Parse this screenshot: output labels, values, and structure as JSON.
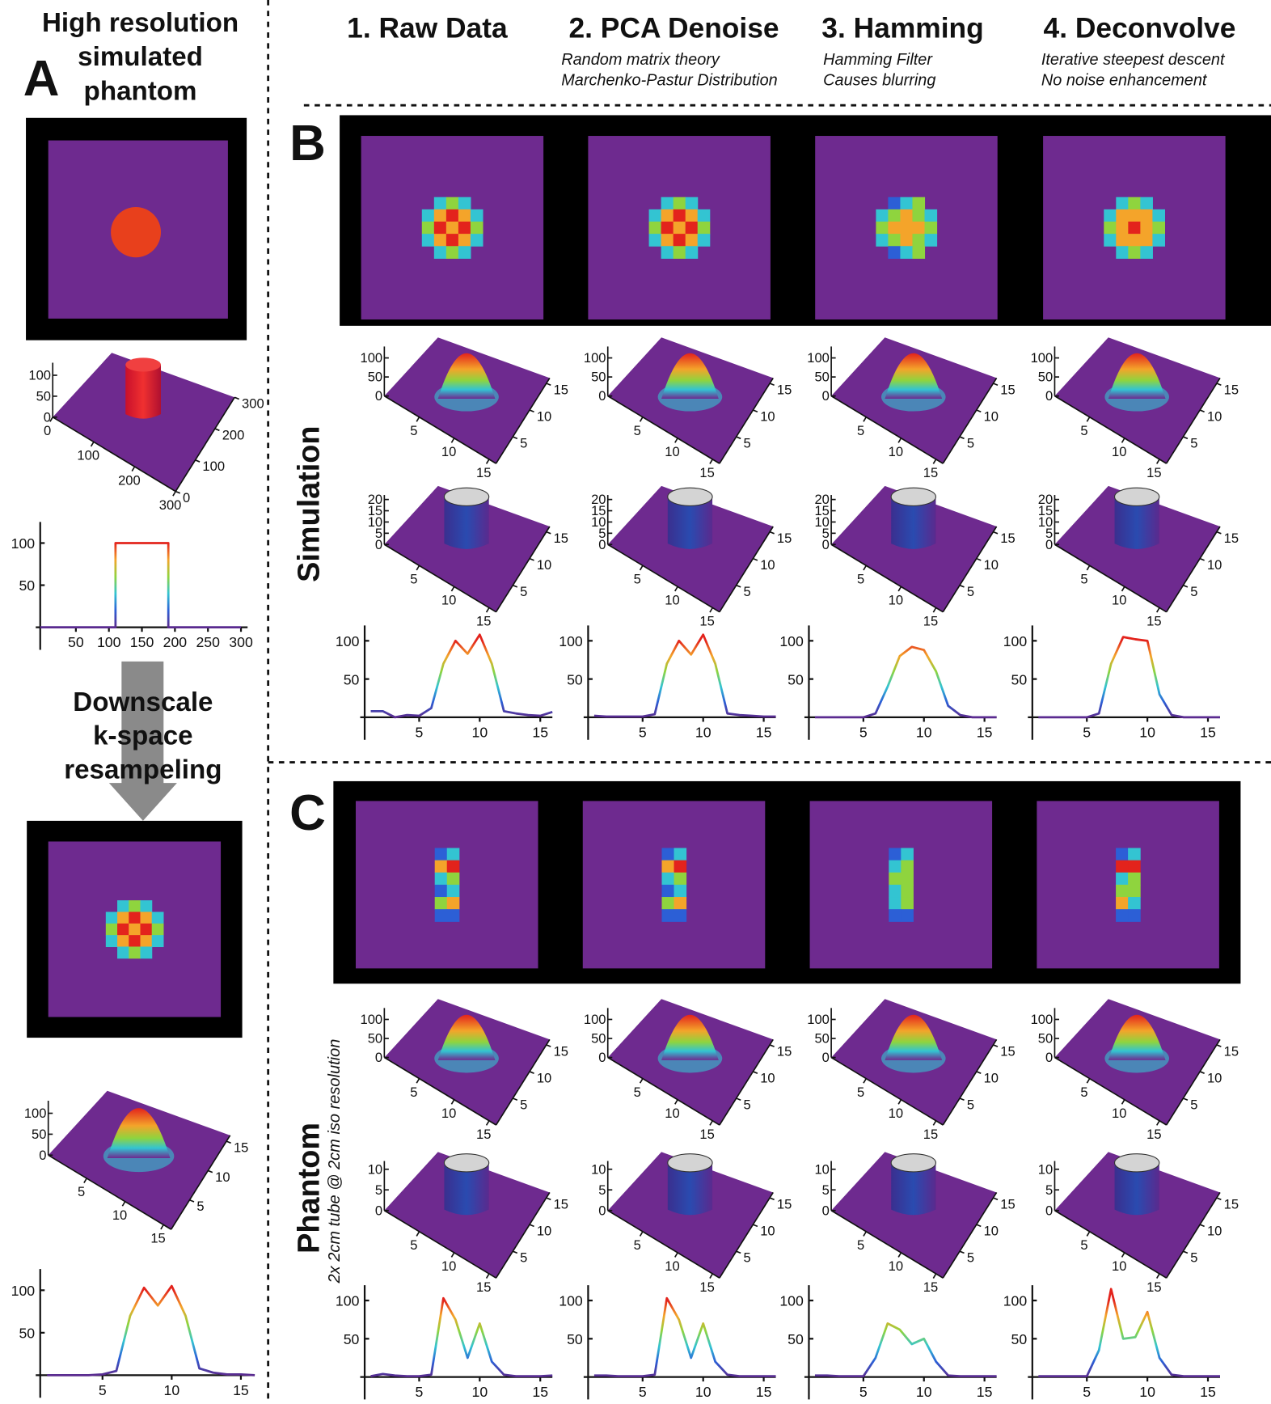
{
  "panel_a": {
    "label": "A",
    "title": [
      "High resolution",
      "simulated",
      "phantom"
    ],
    "downscale": [
      "Downscale",
      "k-space",
      "resampeling"
    ]
  },
  "columns": [
    {
      "title": "1. Raw Data",
      "notes": []
    },
    {
      "title": "2. PCA Denoise",
      "notes": [
        "Random matrix theory",
        "Marchenko-Pastur Distribution"
      ]
    },
    {
      "title": "3. Hamming",
      "notes": [
        "Hamming Filter",
        "Causes blurring"
      ]
    },
    {
      "title": "4. Deconvolve",
      "notes": [
        "Iterative steepest descent",
        "No noise enhancement"
      ]
    }
  ],
  "panel_b": {
    "label": "B",
    "row_label": "Simulation"
  },
  "panel_c": {
    "label": "C",
    "row_label": "Phantom",
    "note": "2x 2cm tube @ 2cm iso resolution"
  },
  "colormap": [
    "#5b2a8e",
    "#2c5fd6",
    "#33c4d2",
    "#8fd43e",
    "#f4a42a",
    "#e3231c"
  ],
  "surfaces": [
    {
      "zlim": [
        0,
        130
      ],
      "zticks": [
        0,
        50,
        100
      ],
      "xlim": [
        0,
        300
      ],
      "xticks": [
        0,
        100,
        200,
        300
      ],
      "ylim": [
        0,
        300
      ],
      "yticks": [
        0,
        100,
        200,
        300
      ]
    },
    {
      "zlim": [
        0,
        130
      ],
      "zticks": [
        0,
        50,
        100
      ],
      "xlim": [
        0,
        16
      ],
      "xticks": [
        5,
        10,
        15
      ],
      "ylim": [
        0,
        16
      ],
      "yticks": [
        5,
        10,
        15
      ]
    },
    {
      "zlim": [
        0,
        130
      ],
      "zticks": [
        0,
        50,
        100
      ],
      "xlim": [
        0,
        16
      ],
      "xticks": [
        5,
        10,
        15
      ],
      "ylim": [
        0,
        16
      ],
      "yticks": [
        5,
        10,
        15
      ]
    },
    {
      "zlim": [
        0,
        130
      ],
      "zticks": [
        0,
        50,
        100
      ],
      "xlim": [
        0,
        16
      ],
      "xticks": [
        5,
        10,
        15
      ],
      "ylim": [
        0,
        16
      ],
      "yticks": [
        5,
        10,
        15
      ]
    },
    {
      "zlim": [
        0,
        130
      ],
      "zticks": [
        0,
        50,
        100
      ],
      "xlim": [
        0,
        16
      ],
      "xticks": [
        5,
        10,
        15
      ],
      "ylim": [
        0,
        16
      ],
      "yticks": [
        5,
        10,
        15
      ]
    },
    {
      "zlim": [
        0,
        130
      ],
      "zticks": [
        0,
        50,
        100
      ],
      "xlim": [
        0,
        16
      ],
      "xticks": [
        5,
        10,
        15
      ],
      "ylim": [
        0,
        16
      ],
      "yticks": [
        5,
        10,
        15
      ]
    },
    {
      "zlim": [
        0,
        22
      ],
      "zticks": [
        0,
        5,
        10,
        15,
        20
      ],
      "xlim": [
        0,
        16
      ],
      "xticks": [
        5,
        10,
        15
      ],
      "ylim": [
        0,
        16
      ],
      "yticks": [
        5,
        10,
        15
      ]
    },
    {
      "zlim": [
        0,
        22
      ],
      "zticks": [
        0,
        5,
        10,
        15,
        20
      ],
      "xlim": [
        0,
        16
      ],
      "xticks": [
        5,
        10,
        15
      ],
      "ylim": [
        0,
        16
      ],
      "yticks": [
        5,
        10,
        15
      ]
    },
    {
      "zlim": [
        0,
        22
      ],
      "zticks": [
        0,
        5,
        10,
        15,
        20
      ],
      "xlim": [
        0,
        16
      ],
      "xticks": [
        5,
        10,
        15
      ],
      "ylim": [
        0,
        16
      ],
      "yticks": [
        5,
        10,
        15
      ]
    },
    {
      "zlim": [
        0,
        22
      ],
      "zticks": [
        0,
        5,
        10,
        15,
        20
      ],
      "xlim": [
        0,
        16
      ],
      "xticks": [
        5,
        10,
        15
      ],
      "ylim": [
        0,
        16
      ],
      "yticks": [
        5,
        10,
        15
      ]
    },
    {
      "zlim": [
        0,
        130
      ],
      "zticks": [
        0,
        50,
        100
      ],
      "xlim": [
        0,
        16
      ],
      "xticks": [
        5,
        10,
        15
      ],
      "ylim": [
        0,
        16
      ],
      "yticks": [
        5,
        10,
        15
      ]
    },
    {
      "zlim": [
        0,
        130
      ],
      "zticks": [
        0,
        50,
        100
      ],
      "xlim": [
        0,
        16
      ],
      "xticks": [
        5,
        10,
        15
      ],
      "ylim": [
        0,
        16
      ],
      "yticks": [
        5,
        10,
        15
      ]
    },
    {
      "zlim": [
        0,
        130
      ],
      "zticks": [
        0,
        50,
        100
      ],
      "xlim": [
        0,
        16
      ],
      "xticks": [
        5,
        10,
        15
      ],
      "ylim": [
        0,
        16
      ],
      "yticks": [
        5,
        10,
        15
      ]
    },
    {
      "zlim": [
        0,
        130
      ],
      "zticks": [
        0,
        50,
        100
      ],
      "xlim": [
        0,
        16
      ],
      "xticks": [
        5,
        10,
        15
      ],
      "ylim": [
        0,
        16
      ],
      "yticks": [
        5,
        10,
        15
      ]
    },
    {
      "zlim": [
        0,
        12
      ],
      "zticks": [
        0,
        5,
        10
      ],
      "xlim": [
        0,
        16
      ],
      "xticks": [
        5,
        10,
        15
      ],
      "ylim": [
        0,
        16
      ],
      "yticks": [
        5,
        10,
        15
      ]
    },
    {
      "zlim": [
        0,
        12
      ],
      "zticks": [
        0,
        5,
        10
      ],
      "xlim": [
        0,
        16
      ],
      "xticks": [
        5,
        10,
        15
      ],
      "ylim": [
        0,
        16
      ],
      "yticks": [
        5,
        10,
        15
      ]
    },
    {
      "zlim": [
        0,
        12
      ],
      "zticks": [
        0,
        5,
        10
      ],
      "xlim": [
        0,
        16
      ],
      "xticks": [
        5,
        10,
        15
      ],
      "ylim": [
        0,
        16
      ],
      "yticks": [
        5,
        10,
        15
      ]
    },
    {
      "zlim": [
        0,
        12
      ],
      "zticks": [
        0,
        5,
        10
      ],
      "xlim": [
        0,
        16
      ],
      "xticks": [
        5,
        10,
        15
      ],
      "ylim": [
        0,
        16
      ],
      "yticks": [
        5,
        10,
        15
      ]
    }
  ],
  "chart_data": [
    {
      "type": "line",
      "x": [
        -4,
        110,
        110,
        190,
        190,
        300
      ],
      "values": [
        0,
        0,
        100,
        100,
        0,
        0
      ],
      "xlim": [
        -4,
        310
      ],
      "ylim": [
        0,
        125
      ],
      "xticks": [
        50,
        100,
        150,
        200,
        250,
        300
      ],
      "yticks": [
        50,
        100
      ]
    },
    {
      "type": "line",
      "x": [
        1,
        2,
        3,
        4,
        5,
        6,
        7,
        8,
        9,
        10,
        11,
        12,
        13,
        14,
        15,
        16
      ],
      "values": [
        0,
        0,
        0,
        0,
        1,
        5,
        70,
        103,
        82,
        105,
        70,
        8,
        3,
        1,
        1,
        0
      ],
      "xlim": [
        0.5,
        16
      ],
      "ylim": [
        0,
        125
      ],
      "xticks": [
        5,
        10,
        15
      ],
      "yticks": [
        50,
        100
      ]
    },
    {
      "type": "line",
      "x": [
        1,
        2,
        3,
        4,
        5,
        6,
        7,
        8,
        9,
        10,
        11,
        12,
        13,
        14,
        15,
        16
      ],
      "values": [
        8,
        8,
        0,
        3,
        2,
        12,
        70,
        100,
        83,
        108,
        70,
        8,
        5,
        3,
        2,
        7
      ],
      "xlim": [
        0.5,
        16
      ],
      "ylim": [
        0,
        120
      ],
      "xticks": [
        5,
        10,
        15
      ],
      "yticks": [
        50,
        100
      ]
    },
    {
      "type": "line",
      "x": [
        1,
        2,
        3,
        4,
        5,
        6,
        7,
        8,
        9,
        10,
        11,
        12,
        13,
        14,
        15,
        16
      ],
      "values": [
        2,
        1,
        1,
        1,
        1,
        4,
        70,
        100,
        82,
        108,
        70,
        5,
        3,
        2,
        1,
        1
      ],
      "xlim": [
        0.5,
        16
      ],
      "ylim": [
        0,
        120
      ],
      "xticks": [
        5,
        10,
        15
      ],
      "yticks": [
        50,
        100
      ]
    },
    {
      "type": "line",
      "x": [
        1,
        2,
        3,
        4,
        5,
        6,
        7,
        8,
        9,
        10,
        11,
        12,
        13,
        14,
        15,
        16
      ],
      "values": [
        0,
        0,
        0,
        0,
        0,
        5,
        40,
        80,
        92,
        88,
        60,
        15,
        3,
        0,
        0,
        0
      ],
      "xlim": [
        0.5,
        16
      ],
      "ylim": [
        0,
        120
      ],
      "xticks": [
        5,
        10,
        15
      ],
      "yticks": [
        50,
        100
      ]
    },
    {
      "type": "line",
      "x": [
        1,
        2,
        3,
        4,
        5,
        6,
        7,
        8,
        9,
        10,
        11,
        12,
        13,
        14,
        15,
        16
      ],
      "values": [
        0,
        0,
        0,
        0,
        0,
        5,
        70,
        105,
        102,
        100,
        30,
        3,
        0,
        0,
        0,
        0
      ],
      "xlim": [
        0.5,
        16
      ],
      "ylim": [
        0,
        120
      ],
      "xticks": [
        5,
        10,
        15
      ],
      "yticks": [
        50,
        100
      ]
    },
    {
      "type": "line",
      "x": [
        1,
        2,
        3,
        4,
        5,
        6,
        7,
        8,
        9,
        10,
        11,
        12,
        13,
        14,
        15,
        16
      ],
      "values": [
        1,
        4,
        2,
        1,
        1,
        3,
        103,
        75,
        25,
        70,
        20,
        3,
        1,
        1,
        1,
        2
      ],
      "xlim": [
        0.5,
        16
      ],
      "ylim": [
        0,
        120
      ],
      "xticks": [
        5,
        10,
        15
      ],
      "yticks": [
        50,
        100
      ]
    },
    {
      "type": "line",
      "x": [
        1,
        2,
        3,
        4,
        5,
        6,
        7,
        8,
        9,
        10,
        11,
        12,
        13,
        14,
        15,
        16
      ],
      "values": [
        2,
        2,
        1,
        1,
        1,
        3,
        103,
        75,
        25,
        70,
        20,
        3,
        1,
        1,
        1,
        1
      ],
      "xlim": [
        0.5,
        16
      ],
      "ylim": [
        0,
        120
      ],
      "xticks": [
        5,
        10,
        15
      ],
      "yticks": [
        50,
        100
      ]
    },
    {
      "type": "line",
      "x": [
        1,
        2,
        3,
        4,
        5,
        6,
        7,
        8,
        9,
        10,
        11,
        12,
        13,
        14,
        15,
        16
      ],
      "values": [
        2,
        2,
        1,
        1,
        1,
        25,
        70,
        62,
        43,
        50,
        20,
        2,
        1,
        1,
        1,
        1
      ],
      "xlim": [
        0.5,
        16
      ],
      "ylim": [
        0,
        120
      ],
      "xticks": [
        5,
        10,
        15
      ],
      "yticks": [
        50,
        100
      ]
    },
    {
      "type": "line",
      "x": [
        1,
        2,
        3,
        4,
        5,
        6,
        7,
        8,
        9,
        10,
        11,
        12,
        13,
        14,
        15,
        16
      ],
      "values": [
        1,
        1,
        1,
        1,
        1,
        35,
        115,
        50,
        52,
        85,
        25,
        3,
        1,
        1,
        1,
        1
      ],
      "xlim": [
        0.5,
        16
      ],
      "ylim": [
        0,
        120
      ],
      "xticks": [
        5,
        10,
        15
      ],
      "yticks": [
        50,
        100
      ]
    }
  ]
}
